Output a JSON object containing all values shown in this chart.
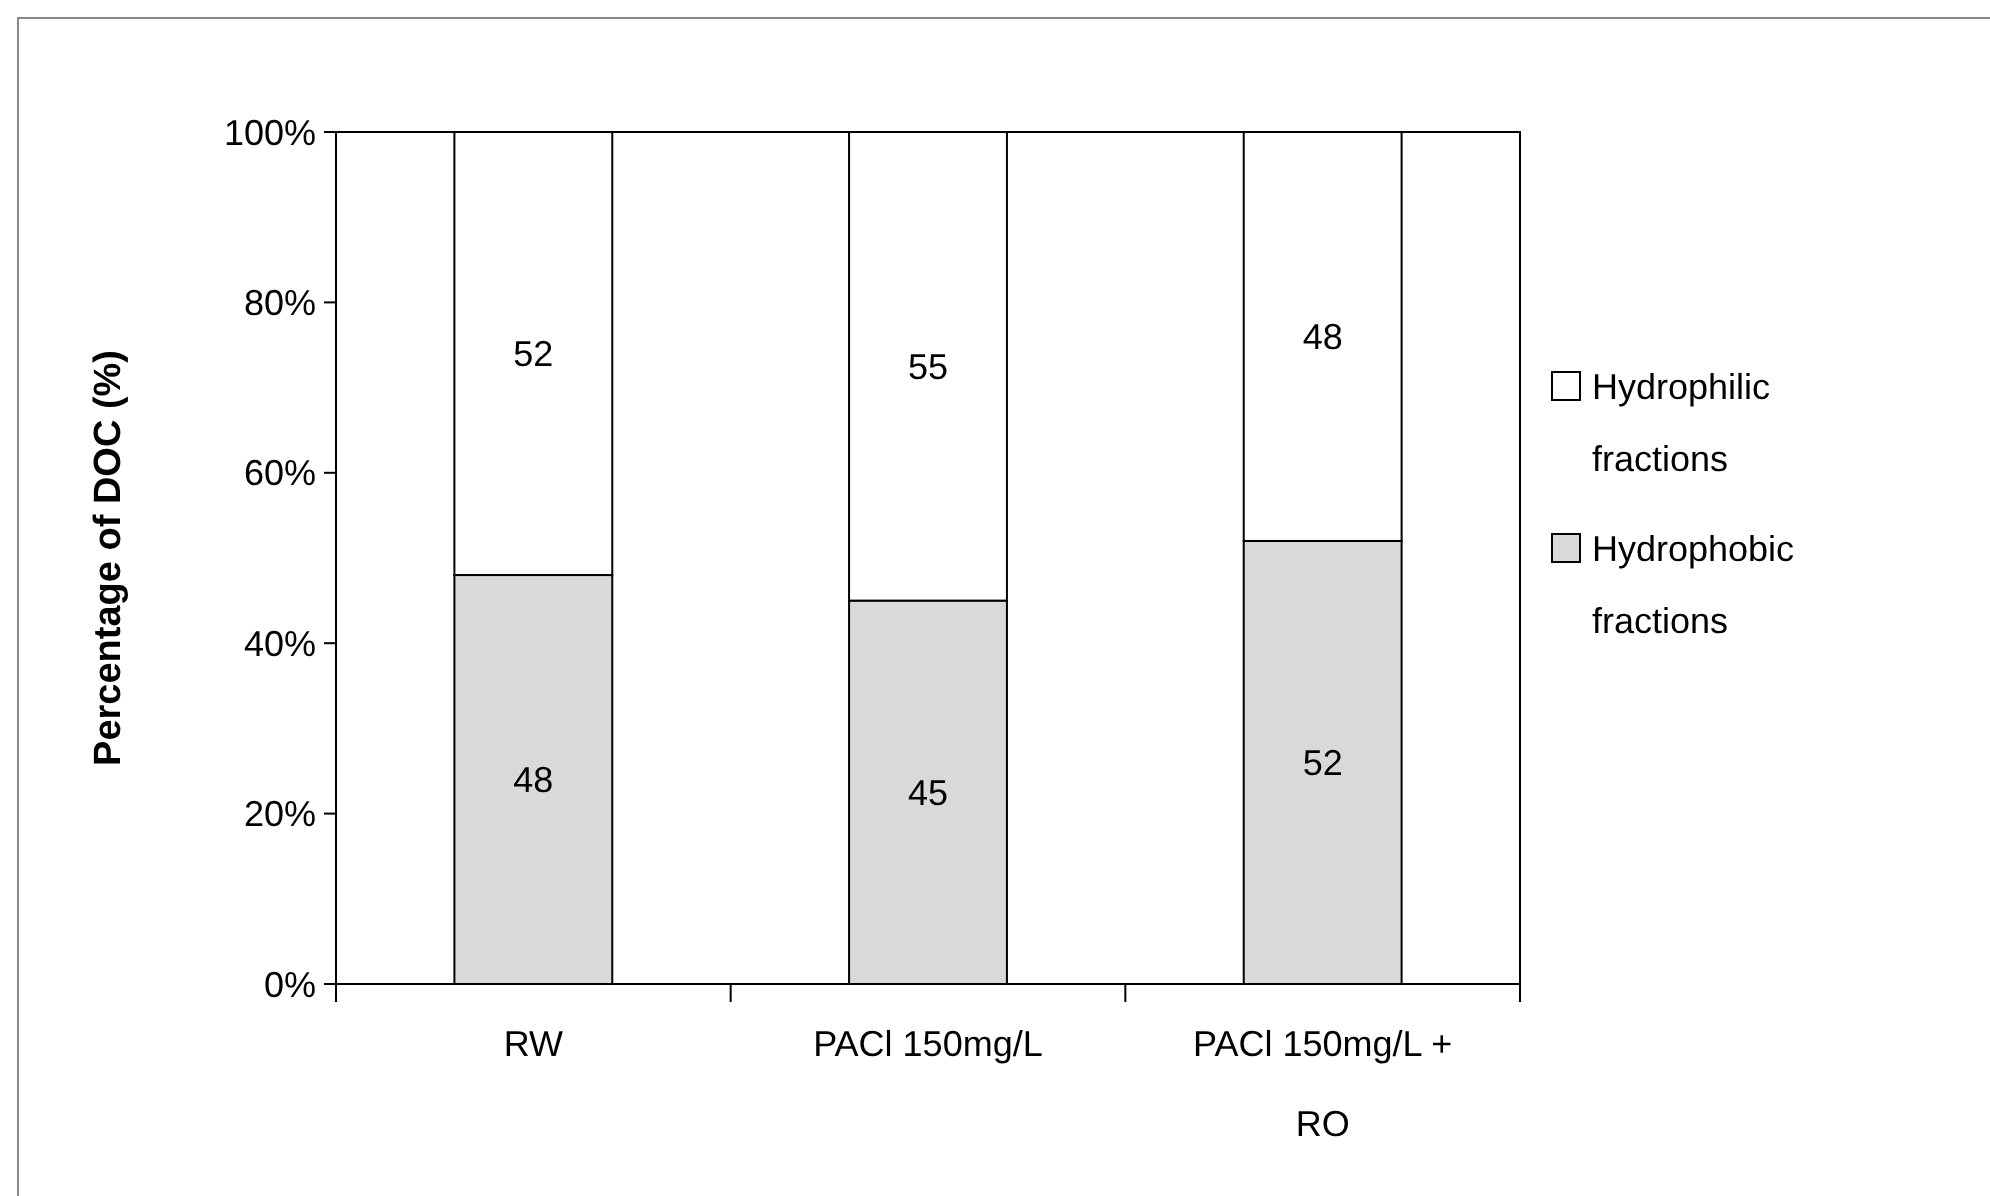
{
  "chart_data": {
    "type": "bar",
    "stacked": true,
    "ylabel": "Percentage of DOC (%)",
    "categories": [
      "RW",
      "PACl 150mg/L",
      "PACl 150mg/L + RO"
    ],
    "series": [
      {
        "name": "Hydrophobic fractions",
        "color": "#d9d9d9",
        "values": [
          48,
          45,
          52
        ]
      },
      {
        "name": "Hydrophilic fractions",
        "color": "#ffffff",
        "values": [
          52,
          55,
          48
        ]
      }
    ],
    "ylim": [
      0,
      100
    ],
    "yticks": [
      {
        "value": 0,
        "label": "0%"
      },
      {
        "value": 20,
        "label": "20%"
      },
      {
        "value": 40,
        "label": "40%"
      },
      {
        "value": 60,
        "label": "60%"
      },
      {
        "value": 80,
        "label": "80%"
      },
      {
        "value": 100,
        "label": "100%"
      }
    ],
    "data_labels": true,
    "grid": false,
    "legend": "right"
  }
}
